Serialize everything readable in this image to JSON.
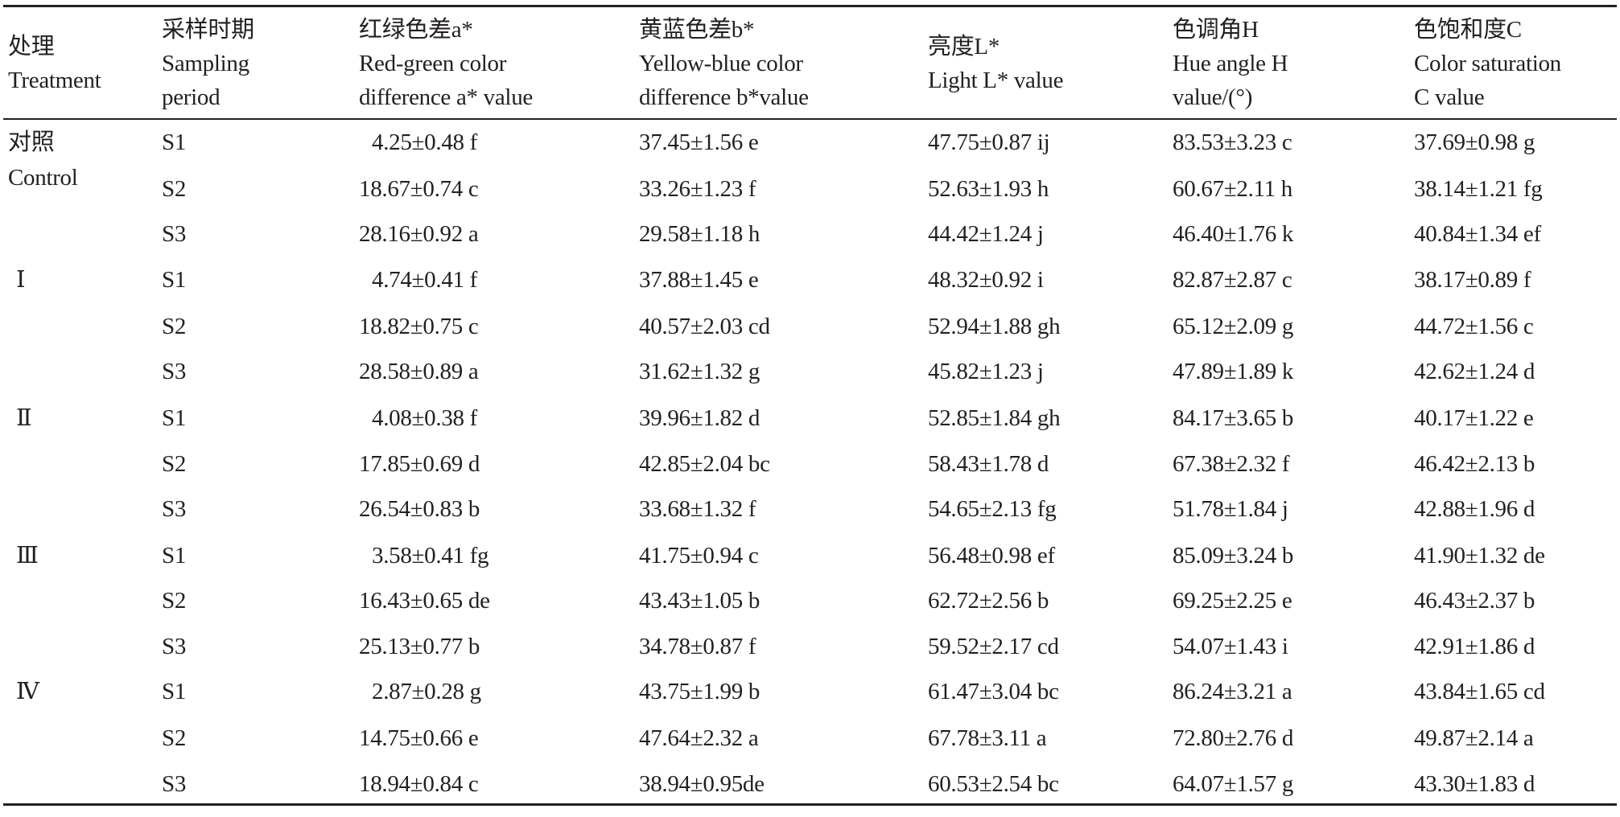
{
  "header": [
    {
      "lines": [
        "处理",
        "Treatment"
      ]
    },
    {
      "lines": [
        "采样时期",
        "Sampling",
        "period"
      ]
    },
    {
      "lines": [
        "红绿色差a*",
        "Red-green color",
        "difference a* value"
      ]
    },
    {
      "lines": [
        "黄蓝色差b*",
        "Yellow-blue color",
        "difference b*value"
      ]
    },
    {
      "lines": [
        "亮度L*",
        "Light L* value"
      ]
    },
    {
      "lines": [
        "色调角H",
        "Hue angle H",
        "value/(°)"
      ]
    },
    {
      "lines": [
        "色饱和度C",
        "Color saturation",
        "C value"
      ]
    }
  ],
  "groups": [
    {
      "treatment": [
        "对照",
        "Control"
      ],
      "rows": [
        [
          "S1",
          "4.25±0.48 f",
          "37.45±1.56 e",
          "47.75±0.87 ij",
          "83.53±3.23 c",
          "37.69±0.98 g"
        ],
        [
          "S2",
          "18.67±0.74 c",
          "33.26±1.23 f",
          "52.63±1.93 h",
          "60.67±2.11 h",
          "38.14±1.21 fg"
        ],
        [
          "S3",
          "28.16±0.92 a",
          "29.58±1.18 h",
          "44.42±1.24 j",
          "46.40±1.76 k",
          "40.84±1.34 ef"
        ]
      ]
    },
    {
      "treatment": [
        "Ⅰ"
      ],
      "rows": [
        [
          "S1",
          "4.74±0.41 f",
          "37.88±1.45 e",
          "48.32±0.92 i",
          "82.87±2.87 c",
          "38.17±0.89 f"
        ],
        [
          "S2",
          "18.82±0.75 c",
          "40.57±2.03 cd",
          "52.94±1.88 gh",
          "65.12±2.09 g",
          "44.72±1.56 c"
        ],
        [
          "S3",
          "28.58±0.89 a",
          "31.62±1.32 g",
          "45.82±1.23 j",
          "47.89±1.89 k",
          "42.62±1.24 d"
        ]
      ]
    },
    {
      "treatment": [
        "Ⅱ"
      ],
      "rows": [
        [
          "S1",
          "4.08±0.38 f",
          "39.96±1.82 d",
          "52.85±1.84 gh",
          "84.17±3.65 b",
          "40.17±1.22 e"
        ],
        [
          "S2",
          "17.85±0.69 d",
          "42.85±2.04 bc",
          "58.43±1.78 d",
          "67.38±2.32 f",
          "46.42±2.13 b"
        ],
        [
          "S3",
          "26.54±0.83 b",
          "33.68±1.32 f",
          "54.65±2.13 fg",
          "51.78±1.84 j",
          "42.88±1.96 d"
        ]
      ]
    },
    {
      "treatment": [
        "Ⅲ"
      ],
      "rows": [
        [
          "S1",
          "3.58±0.41 fg",
          "41.75±0.94 c",
          "56.48±0.98 ef",
          "85.09±3.24 b",
          "41.90±1.32 de"
        ],
        [
          "S2",
          "16.43±0.65 de",
          "43.43±1.05 b",
          "62.72±2.56 b",
          "69.25±2.25 e",
          "46.43±2.37 b"
        ],
        [
          "S3",
          "25.13±0.77 b",
          "34.78±0.87 f",
          "59.52±2.17 cd",
          "54.07±1.43 i",
          "42.91±1.86 d"
        ]
      ]
    },
    {
      "treatment": [
        "Ⅳ"
      ],
      "rows": [
        [
          "S1",
          "2.87±0.28 g",
          "43.75±1.99 b",
          "61.47±3.04 bc",
          "86.24±3.21 a",
          "43.84±1.65 cd"
        ],
        [
          "S2",
          "14.75±0.66 e",
          "47.64±2.32 a",
          "67.78±3.11 a",
          "72.80±2.76 d",
          "49.87±2.14 a"
        ],
        [
          "S3",
          "18.94±0.84 c",
          "38.94±0.95de",
          "60.53±2.54 bc",
          "64.07±1.57 g",
          "43.30±1.83 d"
        ]
      ]
    }
  ]
}
